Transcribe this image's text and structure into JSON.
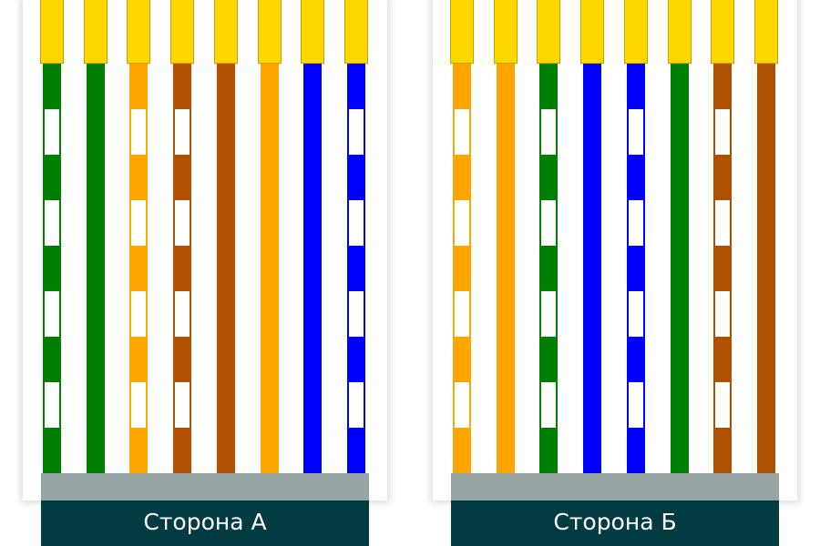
{
  "colors": {
    "orange": "#ffa500",
    "green": "#008000",
    "blue": "#0000ff",
    "brown": "#b05000",
    "pin": "#ffd700",
    "jacket": "#97a4a4",
    "label_bg": "#033b43"
  },
  "sides": [
    {
      "label": "Сторона А",
      "wires": [
        {
          "color": "green",
          "striped": true
        },
        {
          "color": "green",
          "striped": false
        },
        {
          "color": "orange",
          "striped": true
        },
        {
          "color": "brown",
          "striped": true
        },
        {
          "color": "brown",
          "striped": false
        },
        {
          "color": "orange",
          "striped": false
        },
        {
          "color": "blue",
          "striped": false
        },
        {
          "color": "blue",
          "striped": true
        }
      ]
    },
    {
      "label": "Сторона Б",
      "wires": [
        {
          "color": "orange",
          "striped": true
        },
        {
          "color": "orange",
          "striped": false
        },
        {
          "color": "green",
          "striped": true
        },
        {
          "color": "blue",
          "striped": false
        },
        {
          "color": "blue",
          "striped": true
        },
        {
          "color": "green",
          "striped": false
        },
        {
          "color": "brown",
          "striped": true
        },
        {
          "color": "brown",
          "striped": false
        }
      ]
    }
  ]
}
